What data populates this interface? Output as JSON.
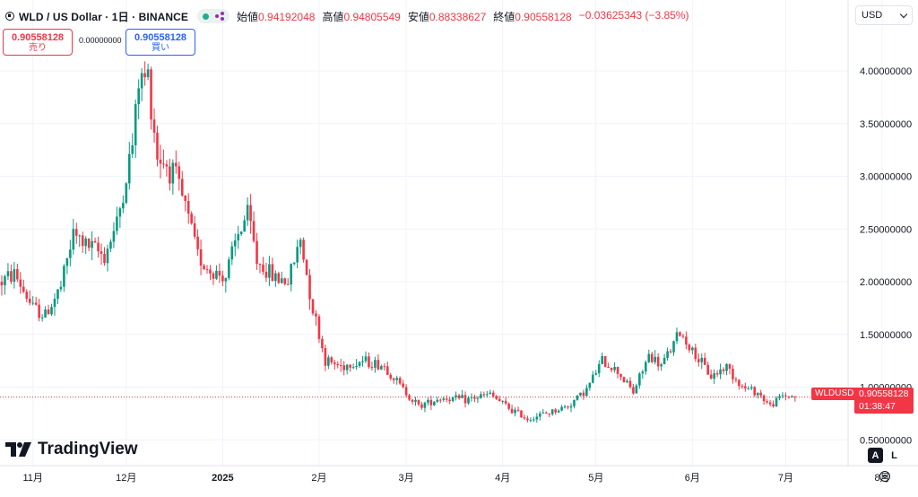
{
  "header": {
    "title": "WLD / US Dollar · 1日 · BINANCE",
    "ohlc": [
      {
        "label": "始値",
        "value": "0.94192048"
      },
      {
        "label": "高値",
        "value": "0.94805549"
      },
      {
        "label": "安値",
        "value": "0.88338627"
      },
      {
        "label": "終値",
        "value": "0.90558128"
      }
    ],
    "change": "−0.03625343 (−3.85%)"
  },
  "trade": {
    "sell_price": "0.90558128",
    "sell_label": "売り",
    "spread": "0.00000000",
    "buy_price": "0.90558128",
    "buy_label": "買い"
  },
  "currency": "USD",
  "logo_text": "TradingView",
  "last_price": {
    "ticker": "WLDUSD",
    "price": "0.90558128",
    "countdown": "01:38:47"
  },
  "scale_buttons": {
    "auto": "A",
    "log": "L"
  },
  "colors": {
    "up": "#089981",
    "down": "#f23645",
    "grid": "#f0f3fa",
    "text": "#131722"
  },
  "chart_data": {
    "type": "candlestick",
    "symbol": "WLDUSD",
    "x_labels": [
      "11月",
      "12月",
      "2025",
      "2月",
      "3月",
      "4月",
      "5月",
      "6月",
      "7月",
      "8月"
    ],
    "y_ticks": [
      "0.50000000",
      "1.00000000",
      "1.50000000",
      "2.00000000",
      "2.50000000",
      "3.00000000",
      "3.50000000",
      "4.00000000"
    ],
    "y_range": [
      0.2,
      4.6
    ],
    "last": 0.90558128,
    "path": [
      [
        "10-22",
        2.0
      ],
      [
        "10-26",
        2.08
      ],
      [
        "11-01",
        1.75
      ],
      [
        "11-05",
        1.68
      ],
      [
        "11-10",
        1.95
      ],
      [
        "11-14",
        2.45
      ],
      [
        "11-18",
        2.35
      ],
      [
        "11-24",
        2.25
      ],
      [
        "11-28",
        2.55
      ],
      [
        "12-03",
        3.3
      ],
      [
        "12-05",
        3.9
      ],
      [
        "12-08",
        3.95
      ],
      [
        "12-11",
        3.2
      ],
      [
        "12-16",
        3.05
      ],
      [
        "12-20",
        2.7
      ],
      [
        "12-24",
        2.25
      ],
      [
        "12-28",
        2.1
      ],
      [
        "01-02",
        2.05
      ],
      [
        "01-06",
        2.45
      ],
      [
        "01-09",
        2.65
      ],
      [
        "01-12",
        2.2
      ],
      [
        "01-17",
        2.05
      ],
      [
        "01-22",
        2.0
      ],
      [
        "01-26",
        2.4
      ],
      [
        "01-30",
        1.75
      ],
      [
        "02-03",
        1.25
      ],
      [
        "02-08",
        1.2
      ],
      [
        "02-15",
        1.25
      ],
      [
        "02-22",
        1.2
      ],
      [
        "02-28",
        0.98
      ],
      [
        "03-05",
        0.82
      ],
      [
        "03-12",
        0.9
      ],
      [
        "03-20",
        0.88
      ],
      [
        "03-28",
        0.93
      ],
      [
        "04-03",
        0.8
      ],
      [
        "04-09",
        0.7
      ],
      [
        "04-15",
        0.75
      ],
      [
        "04-22",
        0.82
      ],
      [
        "04-28",
        0.98
      ],
      [
        "05-03",
        1.25
      ],
      [
        "05-08",
        1.15
      ],
      [
        "05-13",
        0.95
      ],
      [
        "05-18",
        1.3
      ],
      [
        "05-22",
        1.2
      ],
      [
        "05-28",
        1.52
      ],
      [
        "06-02",
        1.3
      ],
      [
        "06-07",
        1.1
      ],
      [
        "06-12",
        1.2
      ],
      [
        "06-17",
        1.0
      ],
      [
        "06-22",
        0.95
      ],
      [
        "06-26",
        0.82
      ],
      [
        "06-30",
        0.92
      ],
      [
        "07-04",
        0.91
      ]
    ]
  }
}
